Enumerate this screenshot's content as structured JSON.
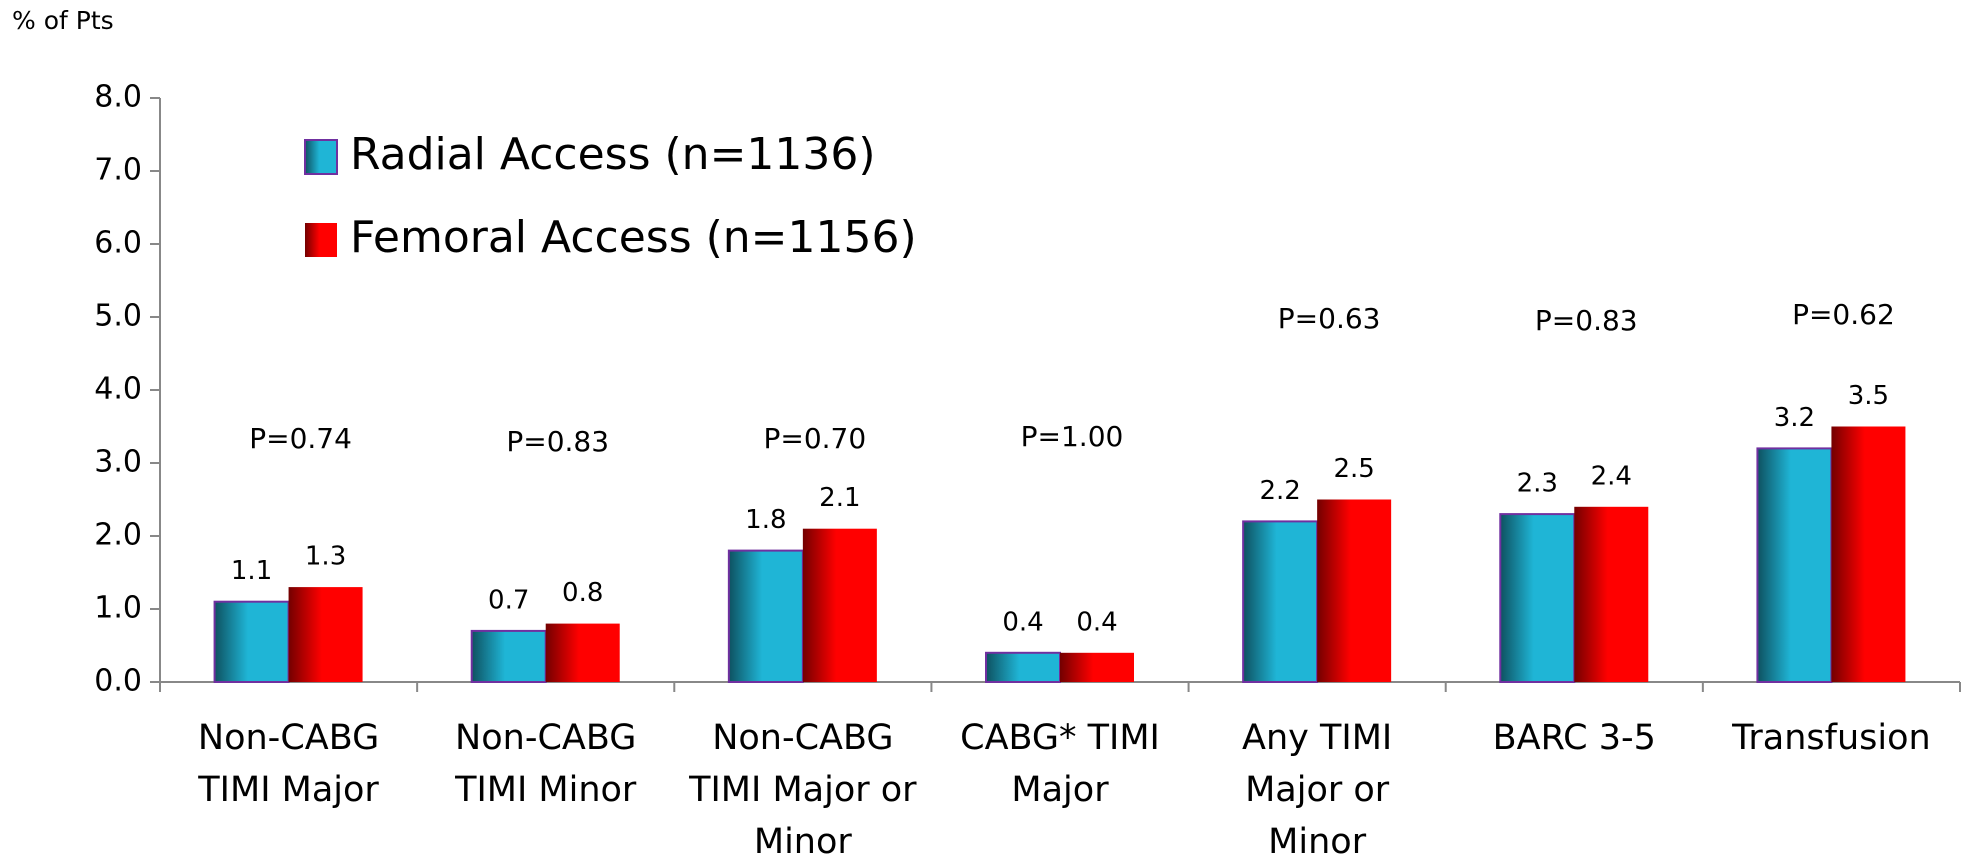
{
  "chart_data": {
    "type": "bar",
    "y_label": "% of Pts",
    "categories": [
      "Non-CABG\nTIMI Major",
      "Non-CABG\nTIMI Minor",
      "Non-CABG\nTIMI Major or\nMinor",
      "CABG* TIMI\nMajor",
      "Any TIMI\nMajor or\nMinor",
      "BARC 3-5",
      "Transfusion"
    ],
    "series": [
      {
        "name": "Radial Access (n=1136)",
        "color": "#1fb5d6",
        "values": [
          1.1,
          0.7,
          1.8,
          0.4,
          2.2,
          2.3,
          3.2
        ]
      },
      {
        "name": "Femoral Access (n=1156)",
        "color": "#ff0000",
        "values": [
          1.3,
          0.8,
          2.1,
          0.4,
          2.5,
          2.4,
          3.5
        ]
      }
    ],
    "annotations": [
      "P=0.74",
      "P=0.83",
      "P=0.70",
      "P=1.00",
      "P=0.63",
      "P=0.83",
      "P=0.62"
    ],
    "ylim": [
      0,
      8
    ],
    "yticks": [
      {
        "value": 0,
        "label": "0.0"
      },
      {
        "value": 1,
        "label": "1.0"
      },
      {
        "value": 2,
        "label": "2.0"
      },
      {
        "value": 3,
        "label": "3.0"
      },
      {
        "value": 4,
        "label": "4.0"
      },
      {
        "value": 5,
        "label": "5.0"
      },
      {
        "value": 6,
        "label": "6.0"
      },
      {
        "value": 7,
        "label": "7.0"
      },
      {
        "value": 8,
        "label": "8.0"
      }
    ],
    "grid": false
  }
}
